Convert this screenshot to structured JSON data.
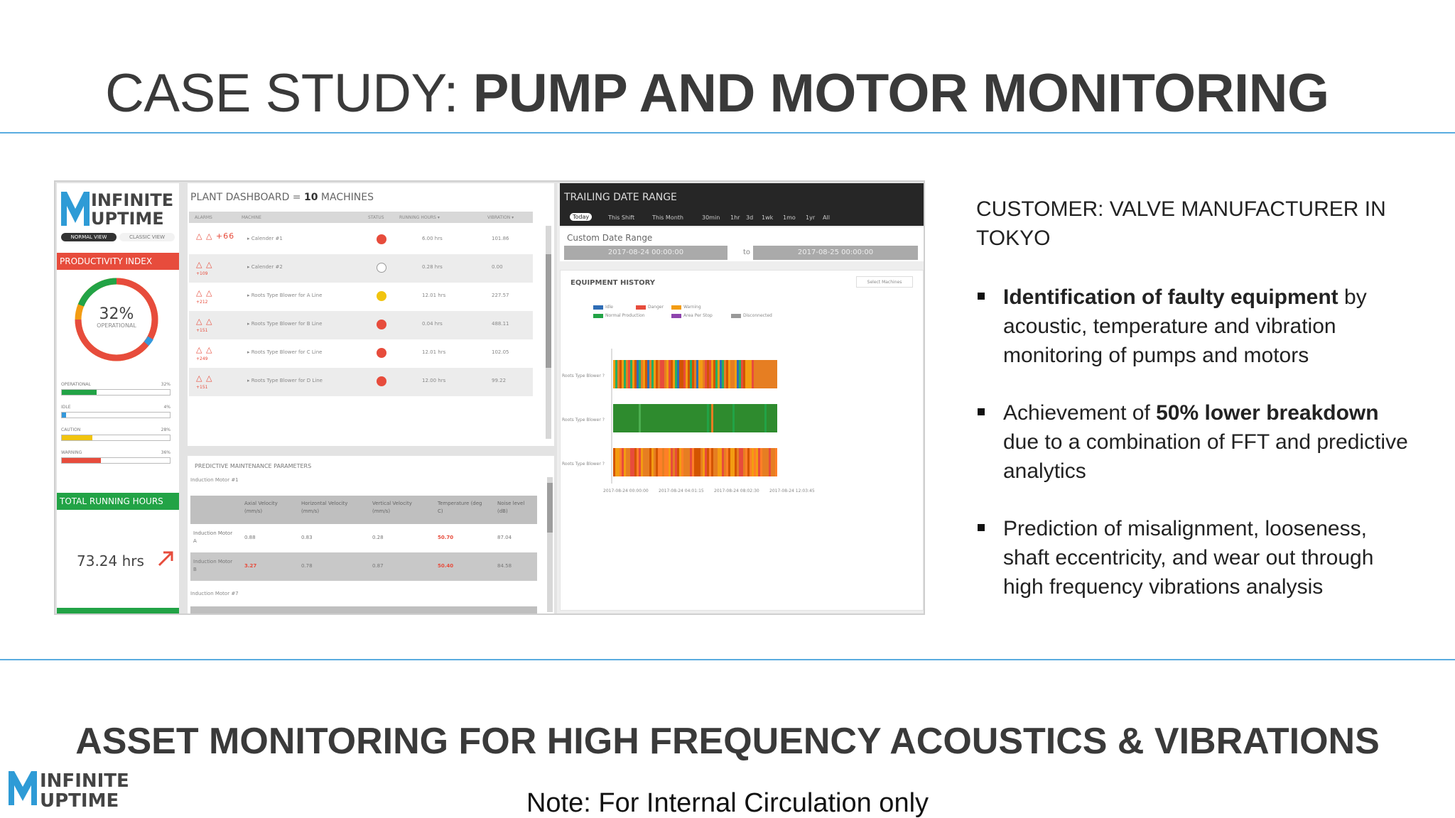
{
  "slide": {
    "title_light": "CASE STUDY: ",
    "title_bold": "PUMP AND MOTOR MONITORING",
    "footer_title": "ASSET MONITORING FOR HIGH FREQUENCY ACOUSTICS & VIBRATIONS",
    "note": "Note: For Internal Circulation only",
    "logo_line1": "INFINITE",
    "logo_line2": "UPTIME"
  },
  "colors": {
    "accent_rule": "#5aace0",
    "red": "#e74c3c",
    "green": "#22a346",
    "orange": "#f39c12",
    "yellow": "#f1c40f"
  },
  "customer": "CUSTOMER: VALVE MANUFACTURER IN TOKYO",
  "bullets": [
    {
      "bold": "Identification of faulty equipment",
      "rest": " by acoustic, temperature and vibration monitoring of pumps and motors",
      "prefix": ""
    },
    {
      "prefix": "Achievement of ",
      "bold": "50% lower breakdown",
      "rest": " due to a combination of FFT and predictive analytics"
    },
    {
      "prefix": "",
      "bold": "",
      "rest": "Prediction of misalignment, looseness, shaft eccentricity, and wear out through high frequency vibrations analysis"
    }
  ],
  "dashboard": {
    "logo_line1": "INFINITE",
    "logo_line2": "UPTIME",
    "view_normal": "NORMAL VIEW",
    "view_classic": "CLASSIC VIEW",
    "productivity_title": "PRODUCTIVITY INDEX",
    "productivity_value": "32%",
    "productivity_label": "OPERATIONAL",
    "productivity_bars": [
      {
        "label": "OPERATIONAL",
        "value": "32%",
        "fraction": 0.32,
        "color": "#22a346"
      },
      {
        "label": "IDLE",
        "value": "4%",
        "fraction": 0.04,
        "color": "#3498db"
      },
      {
        "label": "CAUTION",
        "value": "28%",
        "fraction": 0.28,
        "color": "#f1c40f"
      },
      {
        "label": "WARNING",
        "value": "36%",
        "fraction": 0.36,
        "color": "#e74c3c"
      }
    ],
    "running_hours_title": "TOTAL RUNNING HOURS",
    "running_hours_value": "73.24 hrs",
    "plant_title_prefix": "PLANT DASHBOARD = ",
    "plant_title_count": "10",
    "plant_title_suffix": " MACHINES",
    "table_headers": [
      "ALARMS",
      "MACHINE",
      "STATUS",
      "RUNNING HOURS ▾",
      "VIBRATION ▾"
    ],
    "machines": [
      {
        "alarms": "△ △ +66",
        "count": "",
        "name": "▸ Calender #1",
        "status": "#e74c3c",
        "hours": "6.00 hrs",
        "vibration": "101.86"
      },
      {
        "alarms": "△ △",
        "count": "+109",
        "name": "▸ Calender #2",
        "status": "#ffffff",
        "hours": "0.28 hrs",
        "vibration": "0.00"
      },
      {
        "alarms": "△ △",
        "count": "+212",
        "name": "▸ Roots Type Blower for A Line",
        "status": "#f1c40f",
        "hours": "12.01 hrs",
        "vibration": "227.57"
      },
      {
        "alarms": "△ △",
        "count": "+151",
        "name": "▸ Roots Type Blower for B Line",
        "status": "#e74c3c",
        "hours": "0.04 hrs",
        "vibration": "488.11"
      },
      {
        "alarms": "△ △",
        "count": "+249",
        "name": "▸ Roots Type Blower for C Line",
        "status": "#e74c3c",
        "hours": "12.01 hrs",
        "vibration": "102.05"
      },
      {
        "alarms": "△ △",
        "count": "+151",
        "name": "▸ Roots Type Blower for D Line",
        "status": "#e74c3c",
        "hours": "12.00 hrs",
        "vibration": "99.22"
      }
    ],
    "pm_title": "PREDICTIVE MAINTENANCE PARAMETERS",
    "pm_group1": "Induction Motor #1",
    "pm_group2": "Induction Motor #7",
    "pm_headers": [
      "Axial Velocity (mm/s)",
      "Horizontal Velocity (mm/s)",
      "Vertical Velocity (mm/s)",
      "Temperature (deg C)",
      "Noise level (dB)"
    ],
    "pm_rows": [
      {
        "name": "Induction Motor A",
        "axial": "0.88",
        "horizontal": "0.83",
        "vertical": "0.28",
        "temperature": "50.70",
        "noise": "87.04"
      },
      {
        "name": "Induction Motor B",
        "axial": "3.27",
        "horizontal": "0.78",
        "vertical": "0.87",
        "temperature": "50.40",
        "noise": "84.58"
      }
    ],
    "tdr_title": "TRAILING DATE RANGE",
    "tdr_options": [
      "Today",
      "This Shift",
      "This Month",
      "30min",
      "1hr",
      "3d",
      "1wk",
      "1mo",
      "1yr",
      "All"
    ],
    "cdr_label": "Custom Date Range",
    "cdr_from": "2017-08-24 00:00:00",
    "cdr_to_label": "to",
    "cdr_to": "2017-08-25 00:00:00",
    "eh_title": "EQUIPMENT HISTORY",
    "eh_select": "Select Machines",
    "eh_legend": [
      {
        "label": "Idle",
        "color": "#2f6db5"
      },
      {
        "label": "Danger",
        "color": "#e74c3c"
      },
      {
        "label": "Warning",
        "color": "#f39c12"
      },
      {
        "label": "Normal Production",
        "color": "#22a346"
      },
      {
        "label": "Area Per Stop",
        "color": "#8e44ad"
      },
      {
        "label": "Disconnected",
        "color": "#999999"
      }
    ],
    "eh_rows": [
      "Roots Type Blower ?",
      "Roots Type Blower ?",
      "Roots Type Blower ?"
    ],
    "eh_xticks": [
      "2017-08-24 00:00:00",
      "2017-08-24 04:01:15",
      "2017-08-24 08:02:30",
      "2017-08-24 12:03:45"
    ]
  }
}
